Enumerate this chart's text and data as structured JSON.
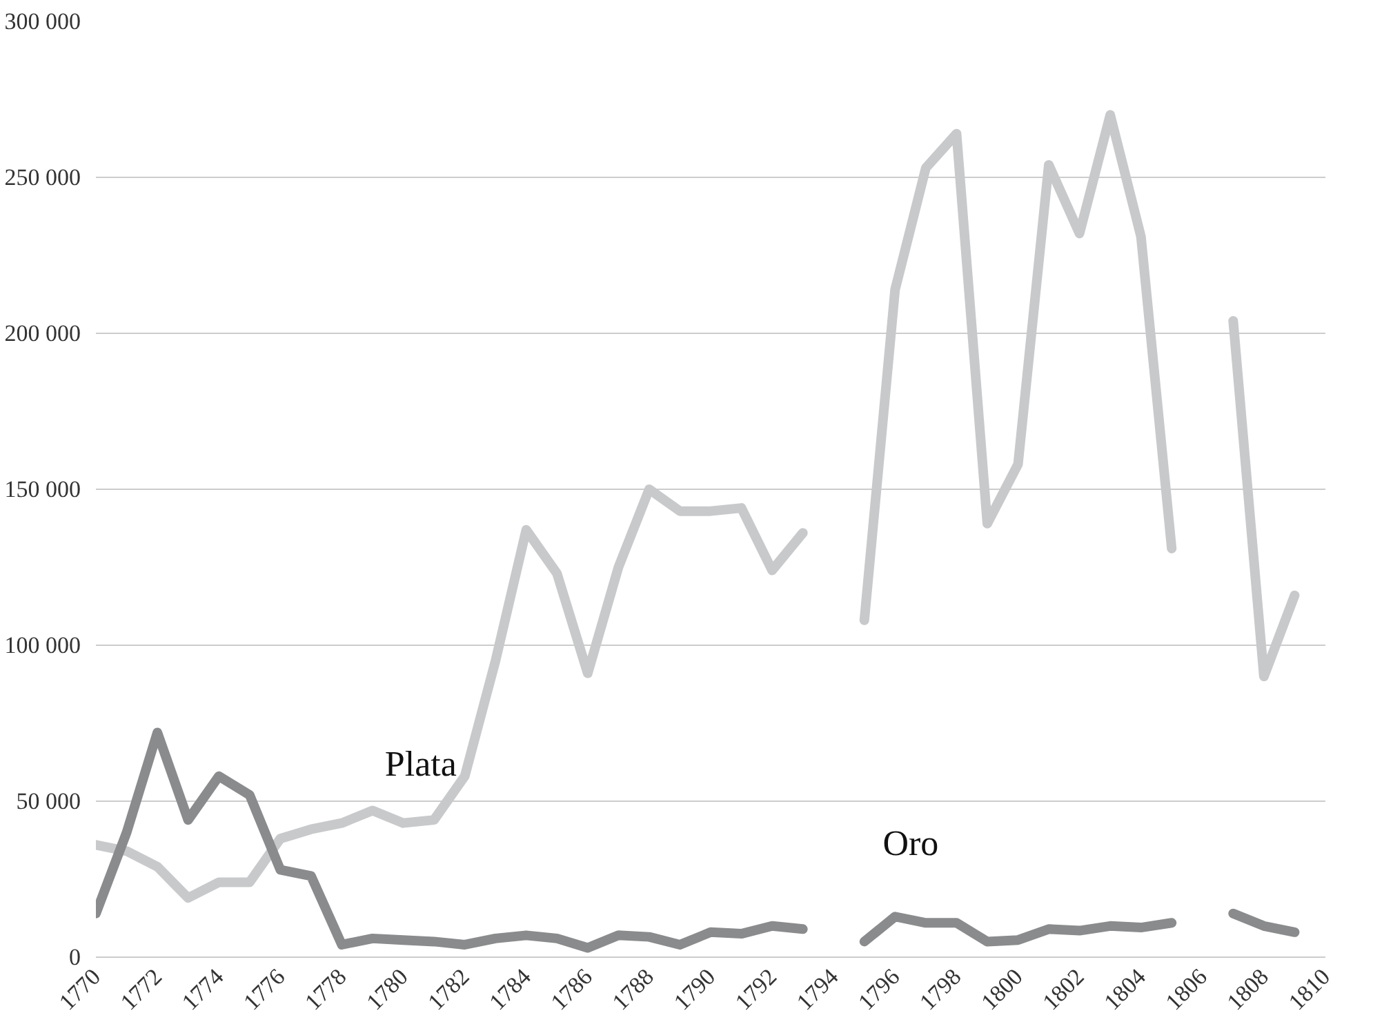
{
  "chart_data": {
    "type": "line",
    "x": [
      1770,
      1771,
      1772,
      1773,
      1774,
      1775,
      1776,
      1777,
      1778,
      1779,
      1780,
      1781,
      1782,
      1783,
      1784,
      1785,
      1786,
      1787,
      1788,
      1789,
      1790,
      1791,
      1792,
      1793,
      1794,
      1795,
      1796,
      1797,
      1798,
      1799,
      1800,
      1801,
      1802,
      1803,
      1804,
      1805,
      1806,
      1807,
      1808,
      1809
    ],
    "series": [
      {
        "name": "Plata",
        "color": "#c8c9cb",
        "values": [
          36000,
          34000,
          29000,
          19000,
          24000,
          24000,
          38000,
          41000,
          43000,
          47000,
          43000,
          44000,
          58000,
          95000,
          137000,
          123000,
          91000,
          125000,
          150000,
          143000,
          143000,
          144000,
          124000,
          136000,
          null,
          108000,
          214000,
          253000,
          264000,
          139000,
          158000,
          254000,
          232000,
          270000,
          231000,
          131000,
          null,
          204000,
          90000,
          116000
        ]
      },
      {
        "name": "Oro",
        "color": "#8a8b8d",
        "values": [
          14000,
          40000,
          72000,
          44000,
          58000,
          52000,
          28000,
          26000,
          4000,
          6000,
          5500,
          5000,
          4000,
          6000,
          7000,
          6000,
          3000,
          7000,
          6500,
          4000,
          8000,
          7500,
          10000,
          9000,
          null,
          5000,
          13000,
          11000,
          11000,
          5000,
          5500,
          9000,
          8500,
          10000,
          9500,
          11000,
          null,
          14000,
          10000,
          8000
        ]
      }
    ],
    "xlim": [
      1770,
      1810
    ],
    "xticks": [
      1770,
      1772,
      1774,
      1776,
      1778,
      1780,
      1782,
      1784,
      1786,
      1788,
      1790,
      1792,
      1794,
      1796,
      1798,
      1800,
      1802,
      1804,
      1806,
      1808,
      1810
    ],
    "ylim": [
      0,
      300000
    ],
    "yticks": [
      {
        "value": 0,
        "label": "0"
      },
      {
        "value": 50000,
        "label": "50 000"
      },
      {
        "value": 100000,
        "label": "100 000"
      },
      {
        "value": 150000,
        "label": "150 000"
      },
      {
        "value": 200000,
        "label": "200 000"
      },
      {
        "value": 250000,
        "label": "250 000"
      },
      {
        "value": 300000,
        "label": "300 000"
      }
    ],
    "grid": "y",
    "legend": false
  }
}
